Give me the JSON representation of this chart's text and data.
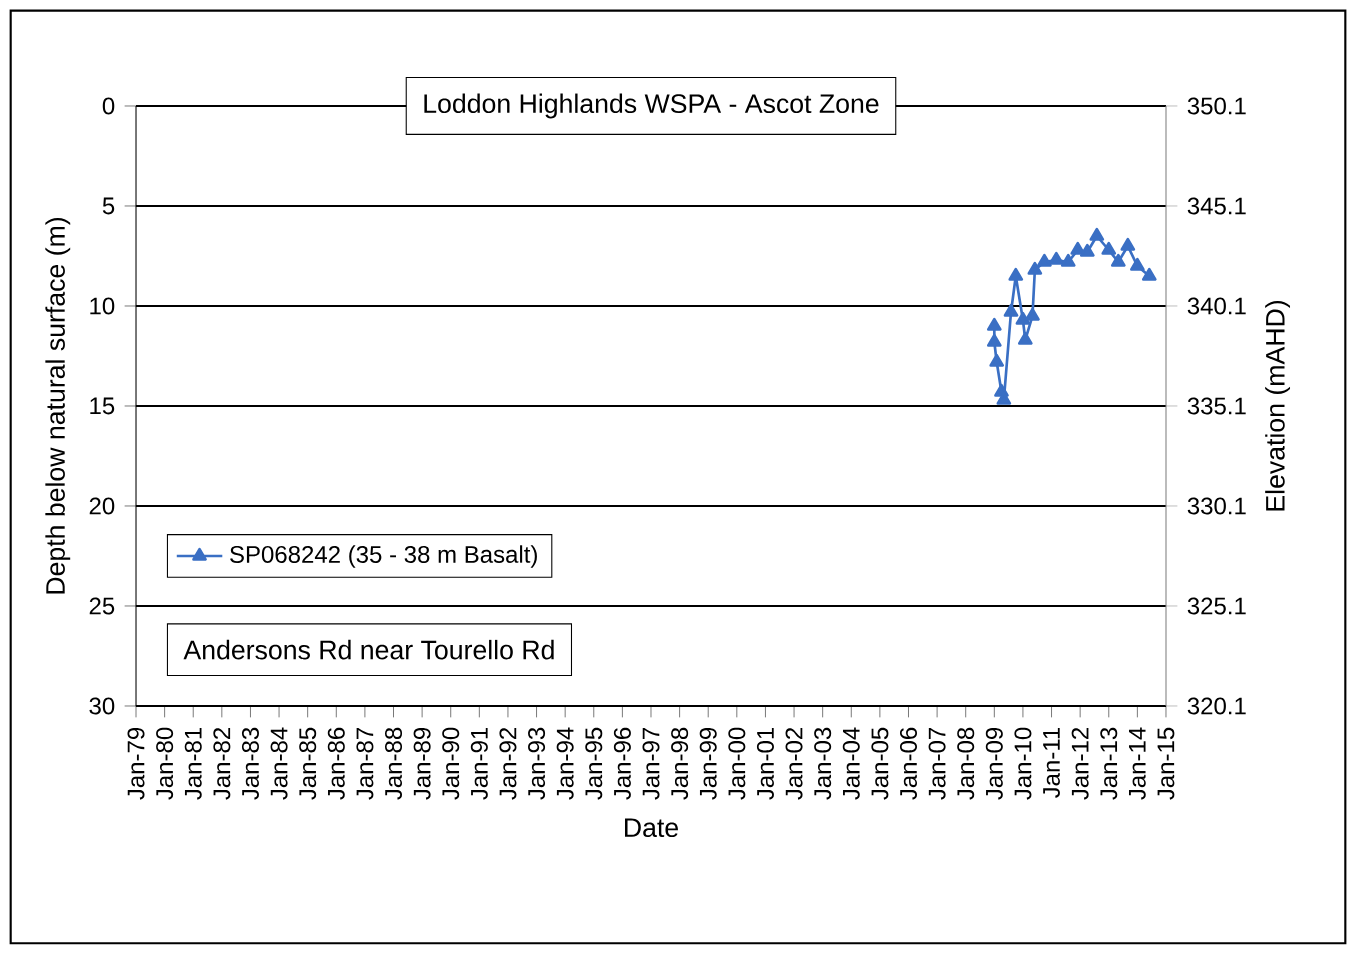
{
  "chart_data": {
    "type": "line",
    "title": "Loddon Highlands WSPA - Ascot Zone",
    "xlabel": "Date",
    "ylabel": "Depth below natural surface (m)",
    "y2label": "Elevation (mAHD)",
    "annotations": [
      "Andersons Rd near Tourello Rd"
    ],
    "series": [
      {
        "name": "SP068242 (35 - 38 m Basalt)",
        "color": "#3a6fc4",
        "x": [
          "2009-01",
          "2009-01",
          "2009-02",
          "2009-04",
          "2009-05",
          "2009-08",
          "2009-10",
          "2010-01",
          "2010-02",
          "2010-05",
          "2010-06",
          "2010-10",
          "2011-03",
          "2011-08",
          "2011-12",
          "2012-04",
          "2012-08",
          "2013-01",
          "2013-05",
          "2013-09",
          "2014-01",
          "2014-06"
        ],
        "values": [
          11.0,
          11.8,
          12.8,
          14.3,
          14.7,
          10.3,
          8.5,
          10.7,
          11.7,
          10.5,
          8.2,
          7.8,
          7.7,
          7.8,
          7.2,
          7.3,
          6.5,
          7.2,
          7.8,
          7.0,
          8.0,
          8.5
        ]
      }
    ],
    "xlim": [
      "1979-01",
      "2015-01"
    ],
    "xticks": [
      {
        "value": "1979-01",
        "label": "Jan-79"
      },
      {
        "value": "1980-01",
        "label": "Jan-80"
      },
      {
        "value": "1981-01",
        "label": "Jan-81"
      },
      {
        "value": "1982-01",
        "label": "Jan-82"
      },
      {
        "value": "1983-01",
        "label": "Jan-83"
      },
      {
        "value": "1984-01",
        "label": "Jan-84"
      },
      {
        "value": "1985-01",
        "label": "Jan-85"
      },
      {
        "value": "1986-01",
        "label": "Jan-86"
      },
      {
        "value": "1987-01",
        "label": "Jan-87"
      },
      {
        "value": "1988-01",
        "label": "Jan-88"
      },
      {
        "value": "1989-01",
        "label": "Jan-89"
      },
      {
        "value": "1990-01",
        "label": "Jan-90"
      },
      {
        "value": "1991-01",
        "label": "Jan-91"
      },
      {
        "value": "1992-01",
        "label": "Jan-92"
      },
      {
        "value": "1993-01",
        "label": "Jan-93"
      },
      {
        "value": "1994-01",
        "label": "Jan-94"
      },
      {
        "value": "1995-01",
        "label": "Jan-95"
      },
      {
        "value": "1996-01",
        "label": "Jan-96"
      },
      {
        "value": "1997-01",
        "label": "Jan-97"
      },
      {
        "value": "1998-01",
        "label": "Jan-98"
      },
      {
        "value": "1999-01",
        "label": "Jan-99"
      },
      {
        "value": "2000-01",
        "label": "Jan-00"
      },
      {
        "value": "2001-01",
        "label": "Jan-01"
      },
      {
        "value": "2002-01",
        "label": "Jan-02"
      },
      {
        "value": "2003-01",
        "label": "Jan-03"
      },
      {
        "value": "2004-01",
        "label": "Jan-04"
      },
      {
        "value": "2005-01",
        "label": "Jan-05"
      },
      {
        "value": "2006-01",
        "label": "Jan-06"
      },
      {
        "value": "2007-01",
        "label": "Jan-07"
      },
      {
        "value": "2008-01",
        "label": "Jan-08"
      },
      {
        "value": "2009-01",
        "label": "Jan-09"
      },
      {
        "value": "2010-01",
        "label": "Jan-10"
      },
      {
        "value": "2011-01",
        "label": "Jan-11"
      },
      {
        "value": "2012-01",
        "label": "Jan-12"
      },
      {
        "value": "2013-01",
        "label": "Jan-13"
      },
      {
        "value": "2014-01",
        "label": "Jan-14"
      },
      {
        "value": "2015-01",
        "label": "Jan-15"
      }
    ],
    "ylim": [
      30,
      0
    ],
    "yticks": [
      0,
      5,
      10,
      15,
      20,
      25,
      30
    ],
    "y2lim": [
      320.1,
      350.1
    ],
    "y2ticks": [
      350.1,
      345.1,
      340.1,
      335.1,
      330.1,
      325.1,
      320.1
    ],
    "grid": "y",
    "legend": "left",
    "marker": "triangle",
    "line_style": "solid"
  }
}
